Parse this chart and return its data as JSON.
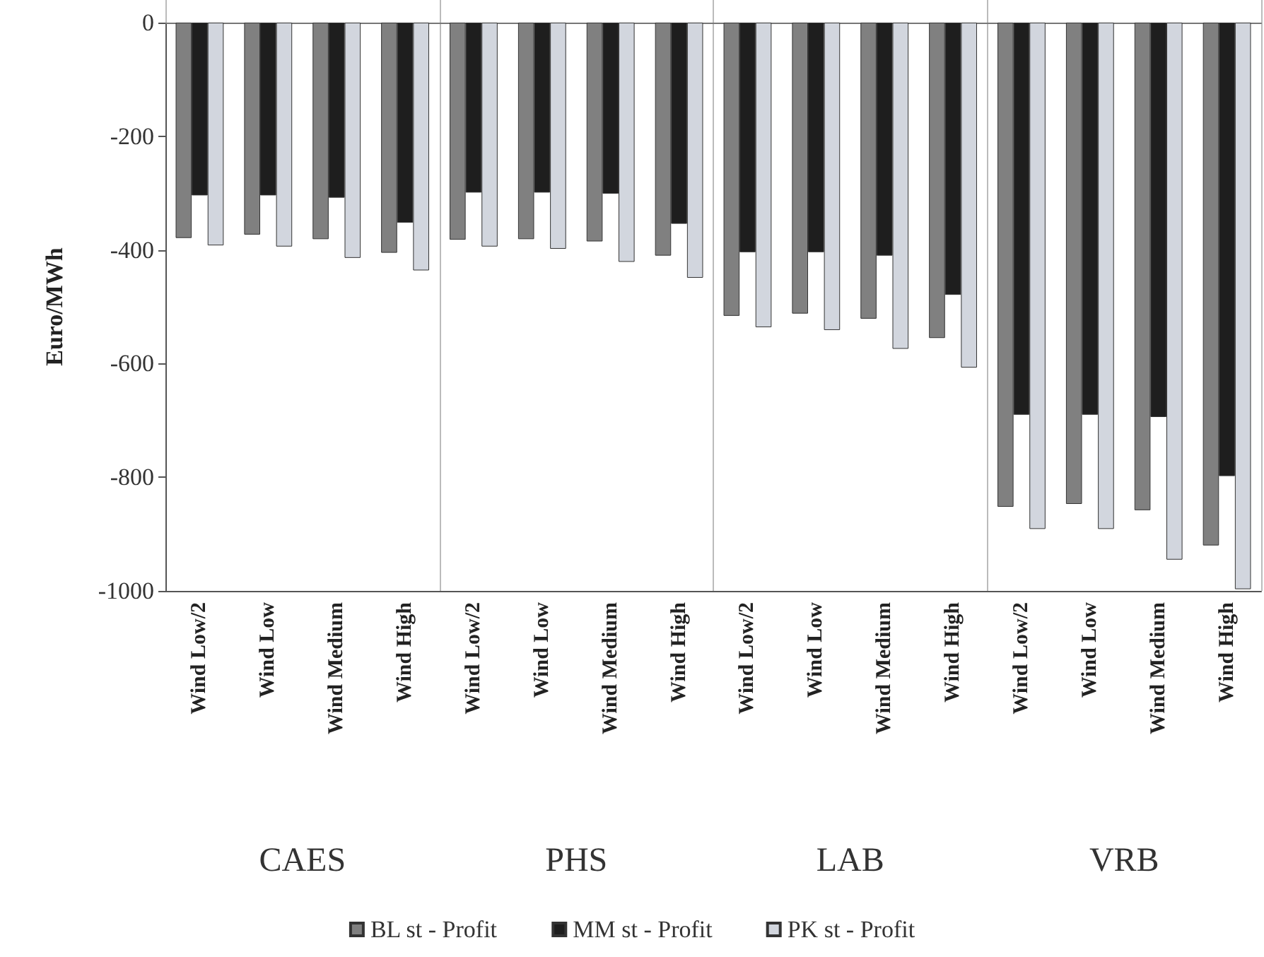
{
  "chart_data": {
    "type": "bar",
    "ylabel": "Euro/MWh",
    "categories": [
      "Wind Low/2",
      "Wind Low",
      "Wind Medium",
      "Wind High",
      "Wind Low/2",
      "Wind Low",
      "Wind Medium",
      "Wind High",
      "Wind Low/2",
      "Wind Low",
      "Wind Medium",
      "Wind High",
      "Wind Low/2",
      "Wind Low",
      "Wind Medium",
      "Wind High"
    ],
    "annotations": [
      "CAES",
      "PHS",
      "LAB",
      "VRB"
    ],
    "series": [
      {
        "name": "BL st - Profit",
        "color": "#808080",
        "values": [
          -379,
          -373,
          -381,
          -405,
          -382,
          -381,
          -385,
          -410,
          -516,
          -512,
          -521,
          -555,
          -852,
          -847,
          -858,
          -920
        ]
      },
      {
        "name": "MM st - Profit",
        "color": "#1e1e1e",
        "values": [
          -304,
          -304,
          -308,
          -352,
          -299,
          -299,
          -301,
          -354,
          -404,
          -404,
          -410,
          -479,
          -690,
          -690,
          -694,
          -798
        ]
      },
      {
        "name": "PK st - Profit",
        "color": "#d2d6de",
        "values": [
          -392,
          -394,
          -414,
          -436,
          -394,
          -398,
          -421,
          -449,
          -536,
          -541,
          -574,
          -607,
          -891,
          -891,
          -945,
          -997
        ]
      }
    ],
    "ylim": [
      -1000,
      0
    ],
    "yticks": [
      -1000,
      -800,
      -600,
      -400,
      -200,
      0
    ],
    "legend": "bottom"
  }
}
